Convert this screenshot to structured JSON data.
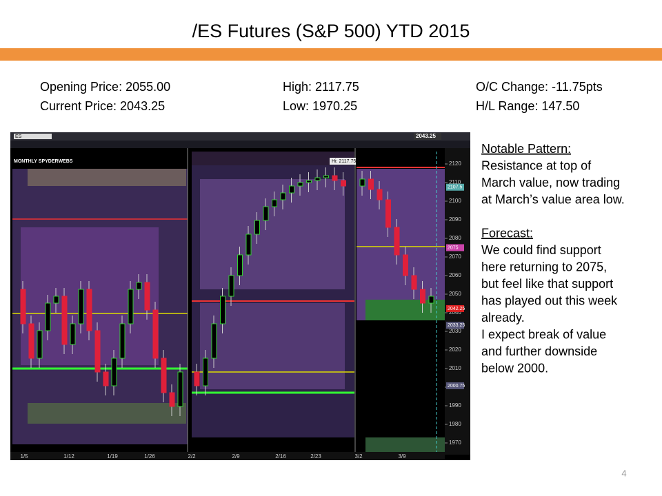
{
  "title": "/ES Futures  (S&P 500)   YTD 2015",
  "stats": [
    [
      "Opening Price:  2055.00",
      "High:  2117.75",
      "O/C Change:  -11.75pts"
    ],
    [
      "Current Price: 2043.25",
      "Low:  1970.25",
      "H/L Range:  147.50"
    ]
  ],
  "notes": {
    "pattern_heading": "Notable Pattern:",
    "pattern_lines": [
      "Resistance at top of",
      "March value, now trading",
      "at March’s value area low."
    ],
    "forecast_heading": "Forecast:",
    "forecast_lines": [
      "We could find support",
      "here returning to 2075,",
      "but feel like that support",
      "has played out this week",
      "already.",
      "I expect break of value",
      "and further downside",
      "below 2000."
    ]
  },
  "screenshot": {
    "study_label": "MONTHLY SPYDERWEBS",
    "symbol": "ES",
    "last_price": "2043.25",
    "hi_label": "Hi: 2117.75",
    "price_axis": [
      2120,
      2110,
      2100,
      2090,
      2080,
      2070,
      2060,
      2050,
      2040,
      2030,
      2020,
      2010,
      2000,
      1990,
      1980,
      1970
    ],
    "price_tags": [
      2107.5,
      2075,
      2042.25,
      2033.25,
      2000.75
    ],
    "date_axis": [
      "1/5",
      "1/12",
      "1/19",
      "1/26",
      "2/2",
      "2/9",
      "2/16",
      "2/23",
      "3/2",
      "3/9"
    ]
  },
  "page_number": "4"
}
